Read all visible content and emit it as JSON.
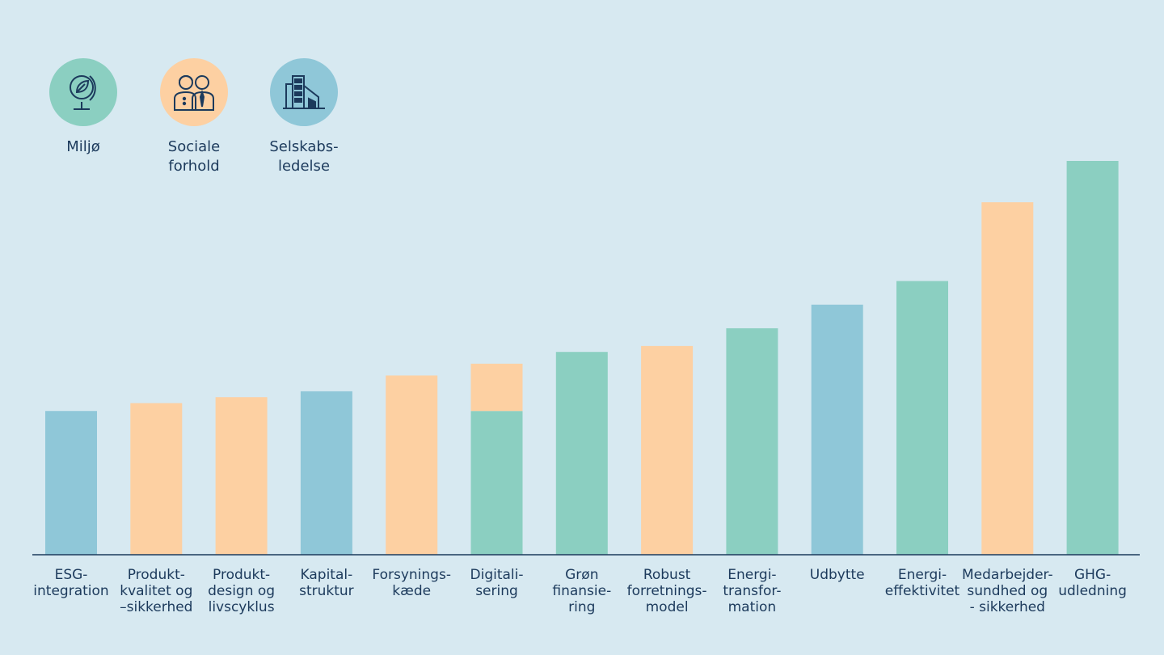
{
  "colors": {
    "background": "#d7e9f1",
    "miljo": "#8bcfc1",
    "sociale": "#fdd0a2",
    "ledelse": "#8fc7d8",
    "axis": "#1c3a5c"
  },
  "legend": [
    {
      "key": "miljo",
      "label": "Miljø",
      "icon": "globe-leaf-icon",
      "color": "#8bcfc1"
    },
    {
      "key": "sociale",
      "label": "Sociale\nforhold",
      "icon": "people-icon",
      "color": "#fdd0a2"
    },
    {
      "key": "ledelse",
      "label": "Selskabs-\nledelse",
      "icon": "buildings-icon",
      "color": "#8fc7d8"
    }
  ],
  "chart_data": {
    "type": "bar",
    "stacked": true,
    "title": "",
    "xlabel": "",
    "ylabel": "",
    "ylim": [
      0,
      100
    ],
    "grid": false,
    "legend_position": "top-left",
    "categories": [
      "ESG-\nintegration",
      "Produkt-\nkvalitet og\n–sikkerhed",
      "Produkt-\ndesign og\nlivscyklus",
      "Kapital-\nstruktur",
      "Forsynings-\nkæde",
      "Digitali-\nsering",
      "Grøn\nfinansie-\nring",
      "Robust\nforretnings-\nmodel",
      "Energi-\ntransfor-\nmation",
      "Udbytte",
      "Energi-\neffektivitet",
      "Medarbejder-\nsundhed og\n- sikkerhed",
      "GHG-\nudledning"
    ],
    "series": [
      {
        "key": "miljo",
        "color": "#8bcfc1",
        "values": [
          0,
          0,
          0,
          0,
          0,
          36.5,
          51.5,
          0,
          57.5,
          0,
          69.5,
          0,
          100
        ]
      },
      {
        "key": "sociale",
        "color": "#fdd0a2",
        "values": [
          0,
          38.5,
          40,
          0,
          45.5,
          12,
          0,
          53,
          0,
          0,
          0,
          89.5,
          0
        ]
      },
      {
        "key": "ledelse",
        "color": "#8fc7d8",
        "values": [
          36.5,
          0,
          0,
          41.5,
          0,
          0,
          0,
          0,
          0,
          63.5,
          0,
          0,
          0
        ]
      }
    ]
  }
}
